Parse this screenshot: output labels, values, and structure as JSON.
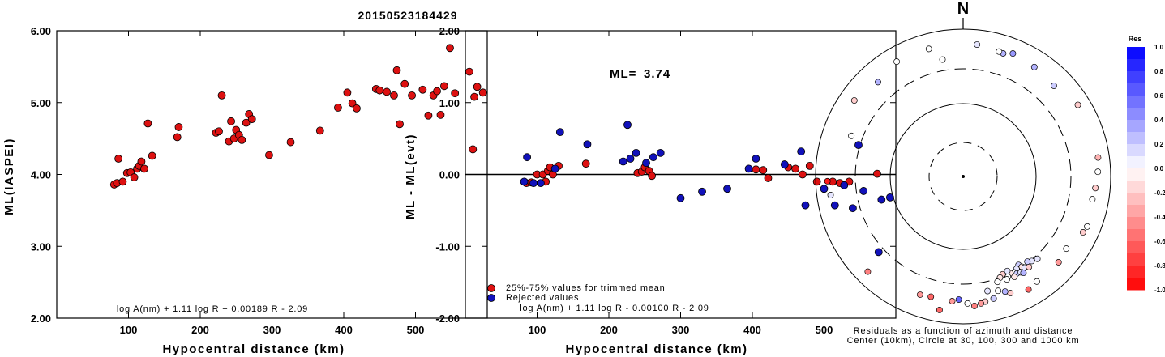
{
  "title": "20150523184429",
  "chart_data": [
    {
      "type": "scatter",
      "name": "ml-vs-distance",
      "ylabel": "ML(IASPEI)",
      "xlabel": "Hypocentral distance (km)",
      "xlim": [
        0,
        600
      ],
      "ylim": [
        2.0,
        6.0
      ],
      "xticks": [
        "100",
        "200",
        "300",
        "400",
        "500"
      ],
      "yticks": [
        "2.00",
        "3.00",
        "4.00",
        "5.00",
        "6.00"
      ],
      "formula": "log A(nm) + 1.11 log R + 0.00189 R - 2.09",
      "color": "#dd1111",
      "points": [
        [
          80,
          3.86
        ],
        [
          84,
          3.88
        ],
        [
          86,
          4.22
        ],
        [
          92,
          3.9
        ],
        [
          98,
          4.02
        ],
        [
          103,
          4.03
        ],
        [
          108,
          3.96
        ],
        [
          112,
          4.08
        ],
        [
          115,
          4.12
        ],
        [
          118,
          4.18
        ],
        [
          122,
          4.08
        ],
        [
          127,
          4.71
        ],
        [
          133,
          4.26
        ],
        [
          168,
          4.52
        ],
        [
          170,
          4.66
        ],
        [
          222,
          4.58
        ],
        [
          226,
          4.6
        ],
        [
          230,
          5.1
        ],
        [
          240,
          4.46
        ],
        [
          243,
          4.74
        ],
        [
          247,
          4.5
        ],
        [
          250,
          4.62
        ],
        [
          254,
          4.55
        ],
        [
          258,
          4.48
        ],
        [
          264,
          4.72
        ],
        [
          268,
          4.84
        ],
        [
          272,
          4.77
        ],
        [
          296,
          4.27
        ],
        [
          326,
          4.45
        ],
        [
          367,
          4.61
        ],
        [
          392,
          4.93
        ],
        [
          405,
          5.14
        ],
        [
          412,
          4.99
        ],
        [
          418,
          4.92
        ],
        [
          445,
          5.19
        ],
        [
          450,
          5.17
        ],
        [
          460,
          5.15
        ],
        [
          470,
          5.1
        ],
        [
          474,
          5.45
        ],
        [
          478,
          4.7
        ],
        [
          485,
          5.26
        ],
        [
          495,
          5.1
        ],
        [
          510,
          5.18
        ],
        [
          518,
          4.82
        ],
        [
          525,
          5.1
        ],
        [
          530,
          5.16
        ],
        [
          535,
          4.83
        ],
        [
          540,
          5.23
        ],
        [
          548,
          5.76
        ],
        [
          555,
          5.13
        ],
        [
          575,
          5.43
        ],
        [
          580,
          4.35
        ],
        [
          582,
          5.08
        ],
        [
          586,
          5.22
        ],
        [
          594,
          5.14
        ]
      ]
    },
    {
      "type": "scatter",
      "name": "residual-vs-distance",
      "ylabel": "ML - ML(evt)",
      "xlabel": "Hypocentral distance (km)",
      "xlim": [
        0,
        600
      ],
      "ylim": [
        -2.0,
        2.0
      ],
      "xticks": [
        "100",
        "200",
        "300",
        "400",
        "500"
      ],
      "yticks": [
        "-2.00",
        "-1.00",
        "0.00",
        "1.00",
        "2.00"
      ],
      "ml_label": "ML=",
      "ml_value": "3.74",
      "legend": [
        "25%-75% values for trimmed mean",
        "Rejected values"
      ],
      "formula": "log A(nm) + 1.11 log R - 0.00100 R - 2.09",
      "series": [
        {
          "legend": "25%-75% values for trimmed mean",
          "color": "#dd1111",
          "points": [
            [
              85,
              -0.12
            ],
            [
              92,
              -0.11
            ],
            [
              100,
              0.0
            ],
            [
              108,
              0.0
            ],
            [
              112,
              -0.1
            ],
            [
              115,
              0.05
            ],
            [
              118,
              0.1
            ],
            [
              122,
              0.0
            ],
            [
              130,
              0.12
            ],
            [
              168,
              0.15
            ],
            [
              240,
              0.02
            ],
            [
              246,
              0.04
            ],
            [
              250,
              0.1
            ],
            [
              256,
              0.05
            ],
            [
              260,
              -0.02
            ],
            [
              405,
              0.07
            ],
            [
              415,
              0.06
            ],
            [
              422,
              -0.05
            ],
            [
              450,
              0.1
            ],
            [
              460,
              0.08
            ],
            [
              470,
              0.0
            ],
            [
              480,
              0.12
            ],
            [
              490,
              -0.1
            ],
            [
              512,
              -0.1
            ],
            [
              522,
              -0.12
            ],
            [
              535,
              -0.1
            ],
            [
              574,
              0.01
            ]
          ]
        },
        {
          "legend": "Rejected values",
          "color": "#1111bb",
          "points": [
            [
              82,
              -0.1
            ],
            [
              86,
              0.24
            ],
            [
              95,
              -0.12
            ],
            [
              105,
              -0.12
            ],
            [
              125,
              0.08
            ],
            [
              132,
              0.59
            ],
            [
              170,
              0.42
            ],
            [
              220,
              0.18
            ],
            [
              226,
              0.69
            ],
            [
              230,
              0.22
            ],
            [
              238,
              0.3
            ],
            [
              252,
              0.16
            ],
            [
              262,
              0.24
            ],
            [
              272,
              0.3
            ],
            [
              300,
              -0.33
            ],
            [
              330,
              -0.24
            ],
            [
              365,
              -0.2
            ],
            [
              395,
              0.08
            ],
            [
              405,
              0.22
            ],
            [
              445,
              0.14
            ],
            [
              468,
              0.32
            ],
            [
              474,
              -0.43
            ],
            [
              500,
              -0.2
            ],
            [
              515,
              -0.43
            ],
            [
              528,
              -0.15
            ],
            [
              540,
              -0.47
            ],
            [
              548,
              0.41
            ],
            [
              555,
              -0.23
            ],
            [
              576,
              -1.08
            ],
            [
              580,
              -0.35
            ],
            [
              592,
              -0.32
            ]
          ]
        }
      ]
    },
    {
      "type": "scatter",
      "name": "azimuthal-residuals",
      "north_label": "N",
      "caption_line1": "Residuals as a function of azimuth and distance",
      "caption_line2": "Center (10km), Circle at 30, 100, 300 and 1000 km",
      "rings_km": [
        30,
        100,
        300,
        1000
      ],
      "colorbar": {
        "title": "Res",
        "min": -1.0,
        "max": 1.0,
        "labels": [
          "1.0",
          "0.8",
          "0.6",
          "0.4",
          "0.2",
          "0.0",
          "-0.2",
          "-0.4",
          "-0.6",
          "-0.8",
          "-1.0"
        ]
      },
      "stations": [
        {
          "az": 6,
          "dist_km": 640,
          "res": 0.1
        },
        {
          "az": 18,
          "dist_km": 580,
          "res": 0.3
        },
        {
          "az": 16,
          "dist_km": 590,
          "res": 0.0
        },
        {
          "az": 22,
          "dist_km": 640,
          "res": 0.4
        },
        {
          "az": 33,
          "dist_km": 600,
          "res": 0.3
        },
        {
          "az": 45,
          "dist_km": 560,
          "res": 0.2
        },
        {
          "az": 58,
          "dist_km": 690,
          "res": -0.2
        },
        {
          "az": 82,
          "dist_km": 710,
          "res": -0.3
        },
        {
          "az": 88,
          "dist_km": 680,
          "res": 0.0
        },
        {
          "az": 95,
          "dist_km": 640,
          "res": -0.2
        },
        {
          "az": 100,
          "dist_km": 610,
          "res": 0.0
        },
        {
          "az": 112,
          "dist_km": 660,
          "res": 0.0
        },
        {
          "az": 115,
          "dist_km": 630,
          "res": -0.2
        },
        {
          "az": 125,
          "dist_km": 520,
          "res": 0.0
        },
        {
          "az": 132,
          "dist_km": 560,
          "res": -0.4
        },
        {
          "az": 145,
          "dist_km": 560,
          "res": 0.0
        },
        {
          "az": 150,
          "dist_km": 600,
          "res": -0.6
        },
        {
          "az": 158,
          "dist_km": 520,
          "res": -0.2
        },
        {
          "az": 160,
          "dist_km": 470,
          "res": 0.3
        },
        {
          "az": 163,
          "dist_km": 430,
          "res": 0.0
        },
        {
          "az": 166,
          "dist_km": 520,
          "res": 0.2
        },
        {
          "az": 168,
          "dist_km": 400,
          "res": 0.1
        },
        {
          "az": 170,
          "dist_km": 540,
          "res": -0.2
        },
        {
          "az": 172,
          "dist_km": 560,
          "res": -0.4
        },
        {
          "az": 175,
          "dist_km": 590,
          "res": -0.5
        },
        {
          "az": 178,
          "dist_km": 540,
          "res": 0.0
        },
        {
          "az": 182,
          "dist_km": 480,
          "res": 0.6
        },
        {
          "az": 185,
          "dist_km": 510,
          "res": -0.4
        },
        {
          "az": 190,
          "dist_km": 700,
          "res": -0.6
        },
        {
          "az": 195,
          "dist_km": 500,
          "res": -0.6
        },
        {
          "az": 200,
          "dist_km": 520,
          "res": -0.4
        },
        {
          "az": 225,
          "dist_km": 680,
          "res": -0.5
        },
        {
          "az": 262,
          "dist_km": 660,
          "res": 0.1
        },
        {
          "az": 268,
          "dist_km": 700,
          "res": -0.9
        },
        {
          "az": 290,
          "dist_km": 420,
          "res": 0.0
        },
        {
          "az": 305,
          "dist_km": 640,
          "res": -0.2
        },
        {
          "az": 318,
          "dist_km": 540,
          "res": 0.3
        },
        {
          "az": 330,
          "dist_km": 640,
          "res": 0.0
        },
        {
          "az": 345,
          "dist_km": 630,
          "res": 0.0
        },
        {
          "az": 350,
          "dist_km": 420,
          "res": 0.0
        },
        {
          "az": 148,
          "dist_km": 270,
          "res": 0.2
        },
        {
          "az": 150,
          "dist_km": 290,
          "res": 0.1
        },
        {
          "az": 152,
          "dist_km": 310,
          "res": 0.0
        },
        {
          "az": 147,
          "dist_km": 300,
          "res": -0.1
        },
        {
          "az": 151,
          "dist_km": 330,
          "res": 0.2
        },
        {
          "az": 154,
          "dist_km": 300,
          "res": -0.1
        },
        {
          "az": 156,
          "dist_km": 320,
          "res": 0.0
        },
        {
          "az": 158,
          "dist_km": 280,
          "res": -0.2
        },
        {
          "az": 146,
          "dist_km": 320,
          "res": 0.1
        },
        {
          "az": 153,
          "dist_km": 350,
          "res": -0.1
        },
        {
          "az": 149,
          "dist_km": 340,
          "res": 0.1
        },
        {
          "az": 157,
          "dist_km": 340,
          "res": 0.0
        },
        {
          "az": 144,
          "dist_km": 340,
          "res": -0.2
        },
        {
          "az": 160,
          "dist_km": 300,
          "res": -0.1
        },
        {
          "az": 141,
          "dist_km": 310,
          "res": 0.1
        },
        {
          "az": 143,
          "dist_km": 290,
          "res": 0.2
        },
        {
          "az": 162,
          "dist_km": 330,
          "res": 0.0
        },
        {
          "az": 155,
          "dist_km": 270,
          "res": 0.1
        },
        {
          "az": 138,
          "dist_km": 330,
          "res": 0.1
        },
        {
          "az": 148,
          "dist_km": 360,
          "res": 0.3
        }
      ]
    }
  ]
}
